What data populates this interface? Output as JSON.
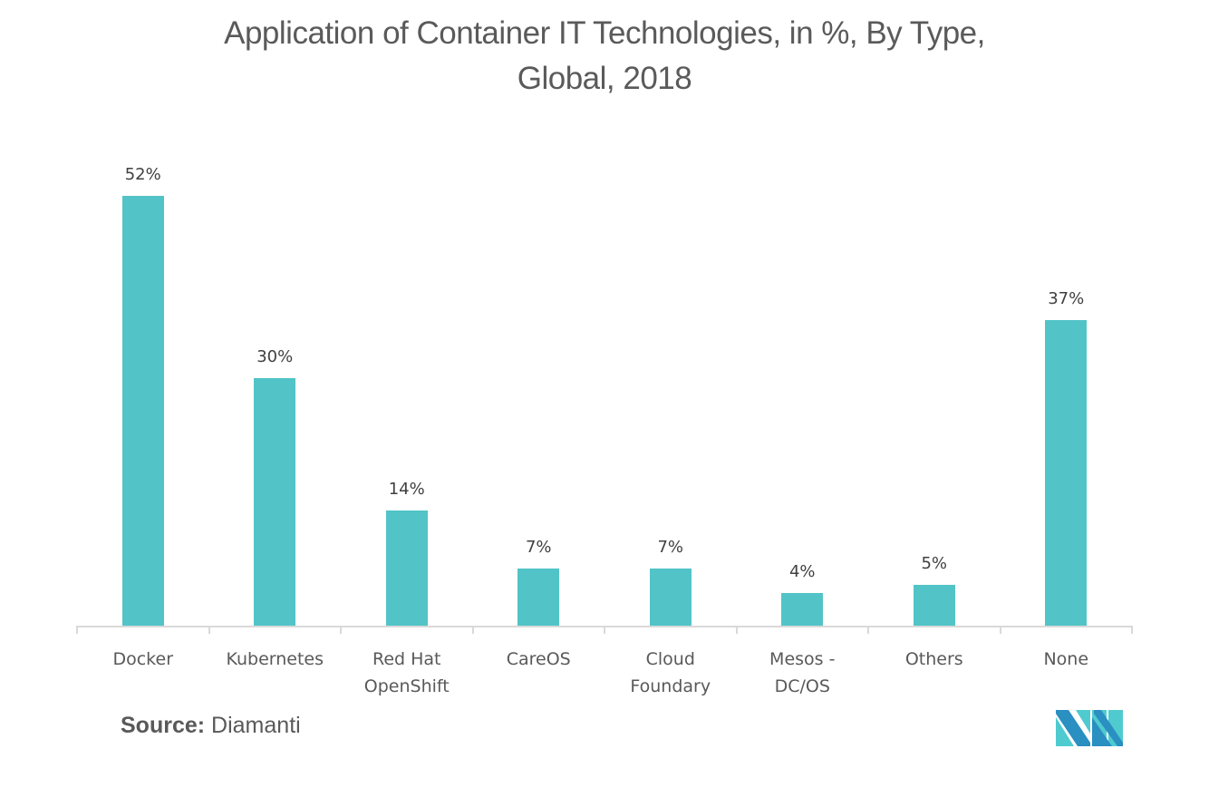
{
  "title": {
    "line1": "Application of Container IT Technologies, in %, By Type,",
    "line2": "Global, 2018"
  },
  "source": {
    "label": "Source:",
    "value": "Diamanti"
  },
  "colors": {
    "bar": "#52c4c7",
    "axis": "#d9d9d9",
    "title_text": "#5a5a5a",
    "logo_dark": "#2a8fc1",
    "logo_light": "#4fcbd0"
  },
  "chart_data": {
    "type": "bar",
    "title": "Application of Container IT Technologies, in %, By Type, Global, 2018",
    "xlabel": "",
    "ylabel": "",
    "categories": [
      "Docker",
      "Kubernetes",
      "Red Hat OpenShift",
      "CareOS",
      "Cloud Foundary",
      "Mesos - DC/OS",
      "Others",
      "None"
    ],
    "category_lines": [
      [
        "Docker"
      ],
      [
        "Kubernetes"
      ],
      [
        "Red Hat",
        "OpenShift"
      ],
      [
        "CareOS"
      ],
      [
        "Cloud",
        "Foundary"
      ],
      [
        "Mesos -",
        "DC/OS"
      ],
      [
        "Others"
      ],
      [
        "None"
      ]
    ],
    "values": [
      52,
      30,
      14,
      7,
      7,
      4,
      5,
      37
    ],
    "data_labels": [
      "52%",
      "30%",
      "14%",
      "7%",
      "7%",
      "4%",
      "5%",
      "37%"
    ],
    "unit": "%",
    "ylim": [
      0,
      55
    ],
    "grid": false,
    "legend": null
  }
}
